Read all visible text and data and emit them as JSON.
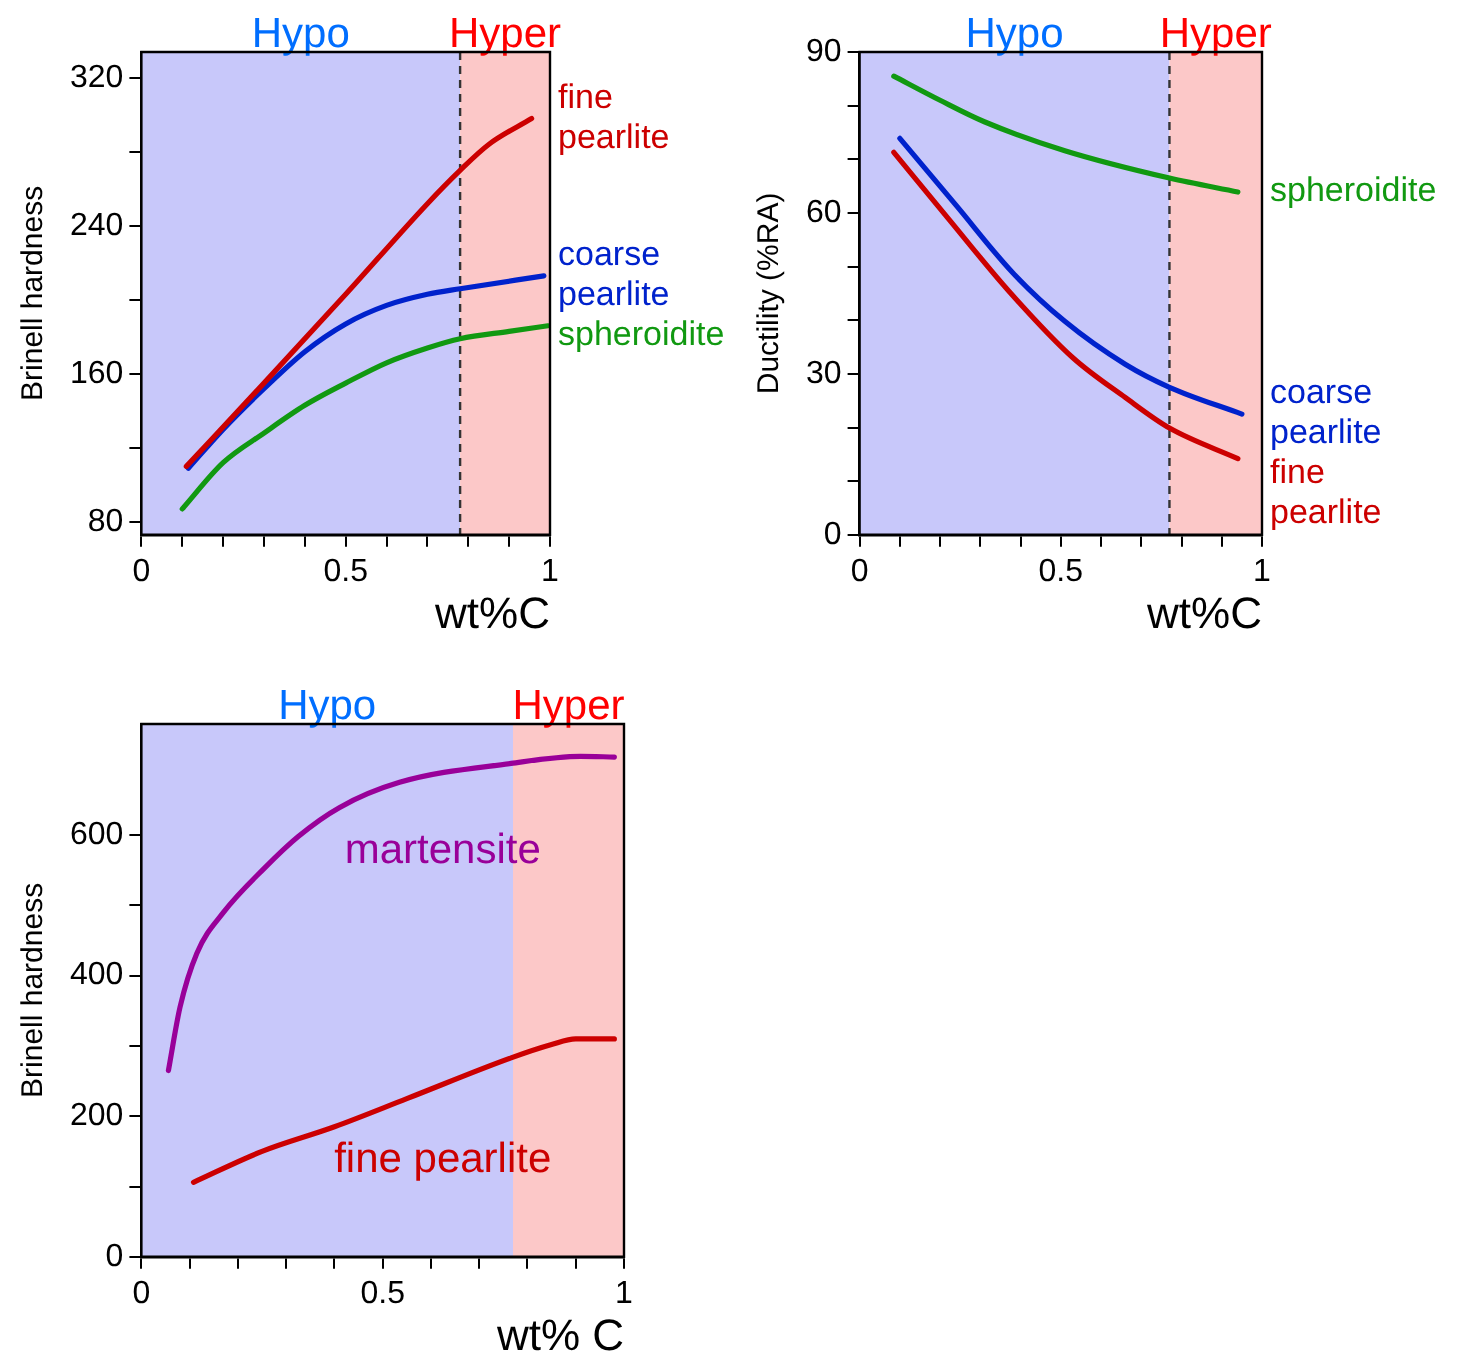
{
  "chart_data": [
    {
      "type": "line",
      "ylabel": "Brinell hardness",
      "xlabel": "wt%C",
      "xlim": [
        0,
        1
      ],
      "ylim": [
        73,
        334
      ],
      "xticks": [
        0,
        {
          "value": 0.1,
          "label": null
        },
        {
          "value": 0.2,
          "label": null
        },
        {
          "value": 0.3,
          "label": null
        },
        {
          "value": 0.4,
          "label": null
        },
        0.5,
        {
          "value": 0.6,
          "label": null
        },
        {
          "value": 0.7,
          "label": null
        },
        {
          "value": 0.8,
          "label": null
        },
        {
          "value": 0.9,
          "label": null
        },
        1
      ],
      "yticks": [
        80,
        {
          "value": 120,
          "label": null
        },
        160,
        {
          "value": 200,
          "label": null
        },
        240,
        {
          "value": 280,
          "label": null
        },
        320
      ],
      "legend": false,
      "marker": "none",
      "bands": [
        {
          "axis": "x",
          "from": 0,
          "to": 0.78,
          "label": "Hypo",
          "color": "#c8c8fa"
        },
        {
          "axis": "x",
          "from": 0.78,
          "to": 1,
          "label": "Hyper",
          "color": "#fcc8c8"
        }
      ],
      "ref_lines": [
        {
          "axis": "x",
          "value": 0.78,
          "color": "#333333",
          "line_style": "dashed"
        }
      ],
      "series": [
        {
          "name": "fine pearlite",
          "color": "#cc0000",
          "x": [
            0.11,
            0.3,
            0.5,
            0.7,
            0.78,
            0.85,
            0.955
          ],
          "values": [
            110,
            155,
            203,
            252,
            270,
            284,
            298
          ]
        },
        {
          "name": "coarse pearlite",
          "color": "#0022cc",
          "x": [
            0.115,
            0.2,
            0.3,
            0.4,
            0.5,
            0.6,
            0.7,
            0.78,
            0.985
          ],
          "values": [
            109,
            130,
            152,
            172,
            187,
            197,
            203,
            206,
            213
          ]
        },
        {
          "name": "spheroidite",
          "color": "#119911",
          "x": [
            0.1,
            0.2,
            0.3,
            0.4,
            0.5,
            0.6,
            0.7,
            0.78,
            0.9,
            0.995
          ],
          "values": [
            87,
            112,
            128,
            143,
            155,
            166,
            174,
            179,
            183,
            186
          ]
        }
      ]
    },
    {
      "type": "line",
      "ylabel": "Ductility (%RA)",
      "xlabel": "wt%C",
      "xlim": [
        0,
        1
      ],
      "ylim": [
        0,
        90
      ],
      "xticks": [
        0,
        {
          "value": 0.1,
          "label": null
        },
        {
          "value": 0.2,
          "label": null
        },
        {
          "value": 0.3,
          "label": null
        },
        {
          "value": 0.4,
          "label": null
        },
        0.5,
        {
          "value": 0.6,
          "label": null
        },
        {
          "value": 0.7,
          "label": null
        },
        {
          "value": 0.8,
          "label": null
        },
        {
          "value": 0.9,
          "label": null
        },
        1
      ],
      "yticks": [
        0,
        {
          "value": 10,
          "label": null
        },
        {
          "value": 20,
          "label": null
        },
        30,
        {
          "value": 40,
          "label": null
        },
        {
          "value": 50,
          "label": null
        },
        60,
        {
          "value": 70,
          "label": null
        },
        {
          "value": 80,
          "label": null
        },
        90
      ],
      "legend": false,
      "marker": "none",
      "bands": [
        {
          "axis": "x",
          "from": 0,
          "to": 0.77,
          "label": "Hypo",
          "color": "#c8c8fa"
        },
        {
          "axis": "x",
          "from": 0.77,
          "to": 1,
          "label": "Hyper",
          "color": "#fcc8c8"
        }
      ],
      "ref_lines": [
        {
          "axis": "x",
          "value": 0.77,
          "color": "#333333",
          "line_style": "dashed"
        }
      ],
      "series": [
        {
          "name": "spheroidite",
          "color": "#119911",
          "x": [
            0.085,
            0.2,
            0.31,
            0.51,
            0.77,
            0.94
          ],
          "values": [
            85.5,
            81,
            77,
            71.6,
            66.5,
            63.9
          ]
        },
        {
          "name": "coarse pearlite",
          "color": "#0022cc",
          "x": [
            0.1,
            0.24,
            0.38,
            0.51,
            0.66,
            0.77,
            0.95
          ],
          "values": [
            73.9,
            61.4,
            48.9,
            39.8,
            31.8,
            27.5,
            22.5
          ]
        },
        {
          "name": "fine pearlite",
          "color": "#cc0000",
          "x": [
            0.085,
            0.22,
            0.37,
            0.53,
            0.66,
            0.77,
            0.94
          ],
          "values": [
            71.3,
            59,
            45.5,
            33,
            25.6,
            19.9,
            14.2
          ]
        }
      ]
    },
    {
      "type": "line",
      "ylabel": "Brinell hardness",
      "xlabel": "wt% C",
      "xlim": [
        0,
        1
      ],
      "ylim": [
        0,
        758
      ],
      "xticks": [
        0,
        {
          "value": 0.1,
          "label": null
        },
        {
          "value": 0.2,
          "label": null
        },
        {
          "value": 0.3,
          "label": null
        },
        {
          "value": 0.4,
          "label": null
        },
        0.5,
        {
          "value": 0.6,
          "label": null
        },
        {
          "value": 0.7,
          "label": null
        },
        {
          "value": 0.8,
          "label": null
        },
        {
          "value": 0.9,
          "label": null
        },
        1
      ],
      "yticks": [
        0,
        {
          "value": 100,
          "label": null
        },
        200,
        {
          "value": 300,
          "label": null
        },
        400,
        {
          "value": 500,
          "label": null
        },
        600
      ],
      "legend": false,
      "marker": "none",
      "bands": [
        {
          "axis": "x",
          "from": 0,
          "to": 0.77,
          "label": "Hypo",
          "color": "#c8c8fa"
        },
        {
          "axis": "x",
          "from": 0.77,
          "to": 1,
          "label": "Hyper",
          "color": "#fcc8c8"
        }
      ],
      "series": [
        {
          "name": "martensite",
          "color": "#990099",
          "x": [
            0.056,
            0.08,
            0.115,
            0.17,
            0.255,
            0.325,
            0.41,
            0.535,
            0.766,
            0.91,
            0.98
          ],
          "values": [
            265,
            355,
            432,
            490,
            553,
            598,
            639,
            675,
            702,
            712,
            711
          ]
        },
        {
          "name": "fine pearlite",
          "color": "#cc0000",
          "x": [
            0.108,
            0.25,
            0.4,
            0.55,
            0.766,
            0.85,
            0.9,
            0.98
          ],
          "values": [
            106,
            150,
            185,
            225,
            283,
            302,
            310,
            310
          ]
        }
      ]
    }
  ]
}
